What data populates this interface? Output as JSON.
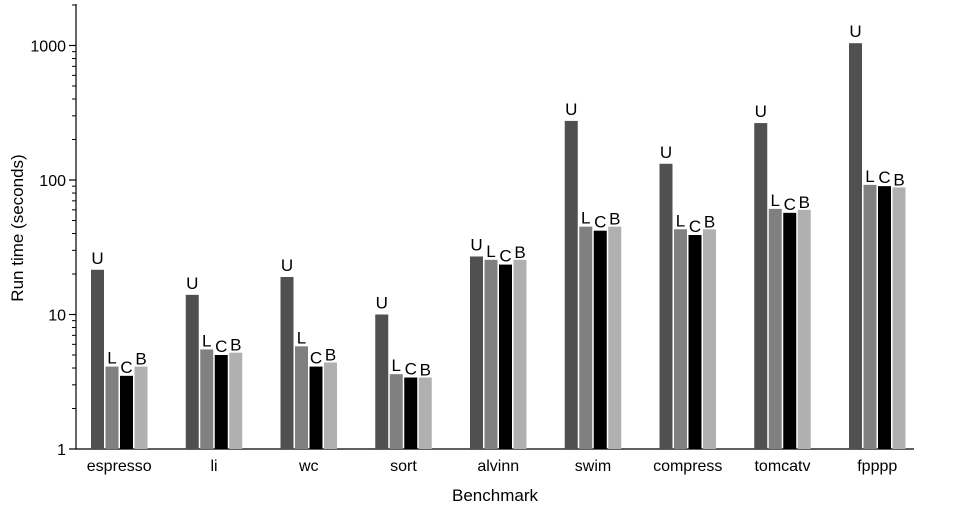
{
  "chart_data": {
    "type": "bar",
    "xlabel": "Benchmark",
    "ylabel": "Run time (seconds)",
    "yscale": "log",
    "ylim": [
      1,
      2000
    ],
    "yticks": [
      1,
      10,
      100,
      1000
    ],
    "ytick_labels": [
      "1",
      "10",
      "100",
      "1000"
    ],
    "grid": false,
    "categories": [
      "espresso",
      "li",
      "wc",
      "sort",
      "alvinn",
      "swim",
      "compress",
      "tomcatv",
      "fpppp"
    ],
    "series": [
      {
        "label": "U",
        "color": "#505050",
        "values": [
          21.5,
          14,
          19,
          10,
          27,
          275,
          132,
          265,
          1040
        ]
      },
      {
        "label": "L",
        "color": "#808080",
        "values": [
          4.1,
          5.5,
          5.8,
          3.6,
          25.5,
          45,
          43,
          61,
          92
        ]
      },
      {
        "label": "C",
        "color": "#000000",
        "values": [
          3.5,
          5.0,
          4.1,
          3.4,
          23.5,
          42,
          39,
          57,
          90
        ]
      },
      {
        "label": "B",
        "color": "#b0b0b0",
        "values": [
          4.1,
          5.2,
          4.4,
          3.4,
          25.5,
          45,
          43,
          60,
          88
        ]
      }
    ]
  }
}
